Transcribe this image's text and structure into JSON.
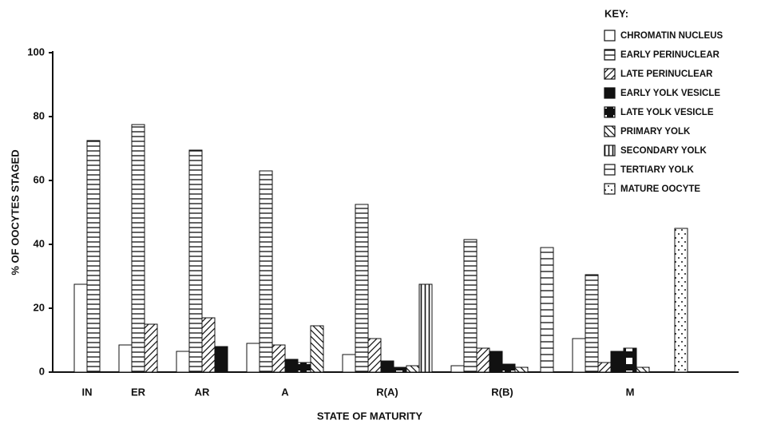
{
  "chart_data": {
    "type": "bar",
    "y_label": "% OF OOCYTES STAGED",
    "x_label": "STATE OF MATURITY",
    "legend_title": "KEY:",
    "legend_position": "top-right",
    "categories": [
      "IN",
      "ER",
      "AR",
      "A",
      "R(A)",
      "R(B)",
      "M"
    ],
    "ylim": [
      0,
      100
    ],
    "yticks": [
      0,
      20,
      40,
      60,
      80,
      100
    ],
    "series": [
      {
        "name": "CHROMATIN NUCLEUS",
        "color": "#111111",
        "pattern": "none",
        "values": [
          27.5,
          8.5,
          6.5,
          9,
          5.5,
          2,
          10.5
        ]
      },
      {
        "name": "EARLY PERINUCLEAR",
        "color": "#111111",
        "pattern": "hlines",
        "values": [
          72.5,
          77.5,
          69.5,
          63,
          52.5,
          41.5,
          30.5
        ]
      },
      {
        "name": "LATE PERINUCLEAR",
        "color": "#111111",
        "pattern": "diag",
        "values": [
          null,
          15,
          17,
          8.5,
          10.5,
          7.5,
          3
        ]
      },
      {
        "name": "EARLY YOLK VESICLE",
        "color": "#111111",
        "pattern": "solid",
        "values": [
          null,
          null,
          8,
          4,
          3.5,
          6.5,
          6.5
        ]
      },
      {
        "name": "LATE YOLK VESICLE",
        "color": "#111111",
        "pattern": "checker",
        "values": [
          null,
          null,
          null,
          3,
          1.5,
          2.5,
          7.5
        ]
      },
      {
        "name": "PRIMARY YOLK",
        "color": "#111111",
        "pattern": "backdiag",
        "values": [
          null,
          null,
          null,
          14.5,
          2,
          1.5,
          1.5
        ]
      },
      {
        "name": "SECONDARY YOLK",
        "color": "#111111",
        "pattern": "vlines",
        "values": [
          null,
          null,
          null,
          null,
          27.5,
          null,
          null
        ]
      },
      {
        "name": "TERTIARY YOLK",
        "color": "#111111",
        "pattern": "hlines2",
        "values": [
          null,
          null,
          null,
          null,
          null,
          39,
          null
        ]
      },
      {
        "name": "MATURE OOCYTE",
        "color": "#111111",
        "pattern": "dots",
        "values": [
          null,
          null,
          null,
          null,
          null,
          null,
          45
        ]
      }
    ]
  }
}
